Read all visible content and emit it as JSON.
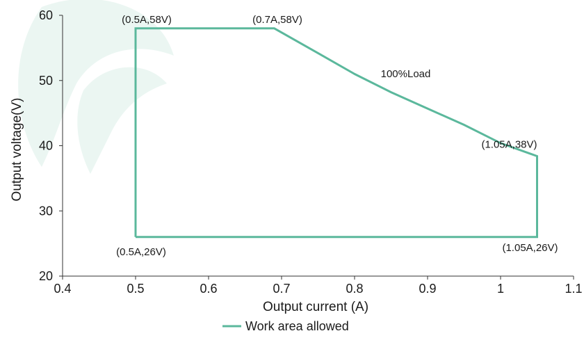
{
  "chart_data": {
    "type": "line",
    "xlabel": "Output current (A)",
    "ylabel": "Output voltage(V)",
    "xlim": [
      0.4,
      1.1
    ],
    "ylim": [
      20,
      60
    ],
    "xticks": [
      0.4,
      0.5,
      0.6,
      0.7,
      0.8,
      0.9,
      1,
      1.1
    ],
    "xtick_labels": [
      "0.4",
      "0.5",
      "0.6",
      "0.7",
      "0.8",
      "0.9",
      "1",
      "1.1"
    ],
    "yticks": [
      20,
      30,
      40,
      50,
      60
    ],
    "ytick_labels": [
      "20",
      "30",
      "40",
      "50",
      "60"
    ],
    "grid": false,
    "legend_position": "bottom",
    "series": [
      {
        "name": "Work area allowed",
        "color": "#5bb89c",
        "x": [
          0.5,
          0.5,
          0.69,
          0.75,
          0.8,
          0.85,
          0.9,
          0.95,
          1.0,
          1.05,
          1.05,
          0.5
        ],
        "y": [
          26,
          58,
          58,
          54.2,
          51.0,
          48.2,
          45.7,
          43.2,
          40.4,
          38.4,
          26,
          26
        ]
      }
    ],
    "annotations": [
      {
        "text": "(0.5A,58V)",
        "x": 0.5,
        "y": 58
      },
      {
        "text": "(0.7A,58V)",
        "x": 0.7,
        "y": 58
      },
      {
        "text": "100%Load",
        "x": 0.87,
        "y": 50.5
      },
      {
        "text": "(1.05A,38V)",
        "x": 1.05,
        "y": 38
      },
      {
        "text": "(0.5A,26V)",
        "x": 0.5,
        "y": 26
      },
      {
        "text": "(1.05A,26V)",
        "x": 1.05,
        "y": 26
      }
    ]
  }
}
